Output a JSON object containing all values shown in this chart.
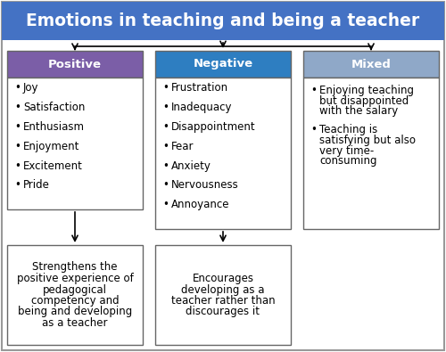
{
  "title": "Emotions in teaching and being a teacher",
  "title_bg": "#4472C4",
  "title_color": "#FFFFFF",
  "positive_header_bg": "#7B5EA7",
  "negative_header_bg": "#2E7EC1",
  "mixed_header_bg": "#8FA8C8",
  "positive_label": "Positive",
  "negative_label": "Negative",
  "mixed_label": "Mixed",
  "positive_items": [
    "Joy",
    "Satisfaction",
    "Enthusiasm",
    "Enjoyment",
    "Excitement",
    "Pride"
  ],
  "negative_items": [
    "Frustration",
    "Inadequacy",
    "Disappointment",
    "Fear",
    "Anxiety",
    "Nervousness",
    "Annoyance"
  ],
  "mixed_item1_lines": [
    "Enjoying teaching",
    "but disappointed",
    "with the salary"
  ],
  "mixed_item2_lines": [
    "Teaching is",
    "satisfying but also",
    "very time-",
    "consuming"
  ],
  "positive_outcome_lines": [
    "Strengthens the",
    "positive experience of",
    "pedagogical",
    "competency and",
    "being and developing",
    "as a teacher"
  ],
  "negative_outcome_lines": [
    "Encourages",
    "developing as a",
    "teacher rather than",
    "discourages it"
  ],
  "bg_color": "#FFFFFF",
  "outer_border": "#999999",
  "box_border": "#666666",
  "title_fontsize": 13.5,
  "header_fontsize": 9.5,
  "body_fontsize": 8.5,
  "outcome_fontsize": 8.5
}
